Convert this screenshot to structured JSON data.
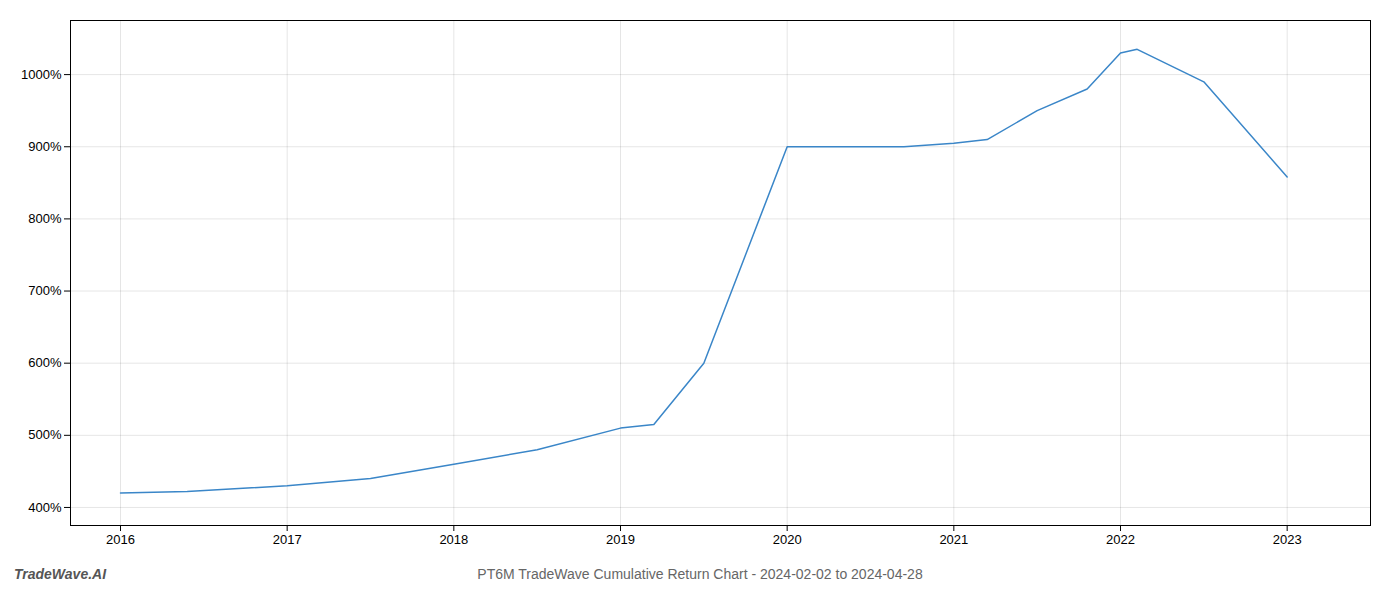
{
  "chart_data": {
    "type": "line",
    "title": "PT6M TradeWave Cumulative Return Chart - 2024-02-02 to 2024-04-28",
    "annotations": [
      "TradeWave.AI"
    ],
    "x": [
      2016,
      2016.4,
      2017,
      2017.5,
      2018,
      2018.5,
      2019,
      2019.2,
      2019.5,
      2019.75,
      2020,
      2020.3,
      2020.7,
      2021,
      2021.2,
      2021.5,
      2021.8,
      2022,
      2022.1,
      2022.5,
      2023
    ],
    "values": [
      420,
      422,
      430,
      440,
      460,
      480,
      510,
      515,
      600,
      750,
      900,
      900,
      900,
      905,
      910,
      950,
      980,
      1030,
      1035,
      990,
      858
    ],
    "color": "#3a86c8",
    "xlim": [
      2015.7,
      2023.5
    ],
    "ylim": [
      375,
      1075
    ],
    "xticks": [
      2016,
      2017,
      2018,
      2019,
      2020,
      2021,
      2022,
      2023
    ],
    "yticks": [
      {
        "value": 400,
        "label": "400%"
      },
      {
        "value": 500,
        "label": "500%"
      },
      {
        "value": 600,
        "label": "600%"
      },
      {
        "value": 700,
        "label": "700%"
      },
      {
        "value": 800,
        "label": "800%"
      },
      {
        "value": 900,
        "label": "900%"
      },
      {
        "value": 1000,
        "label": "1000%"
      }
    ],
    "grid": true
  }
}
